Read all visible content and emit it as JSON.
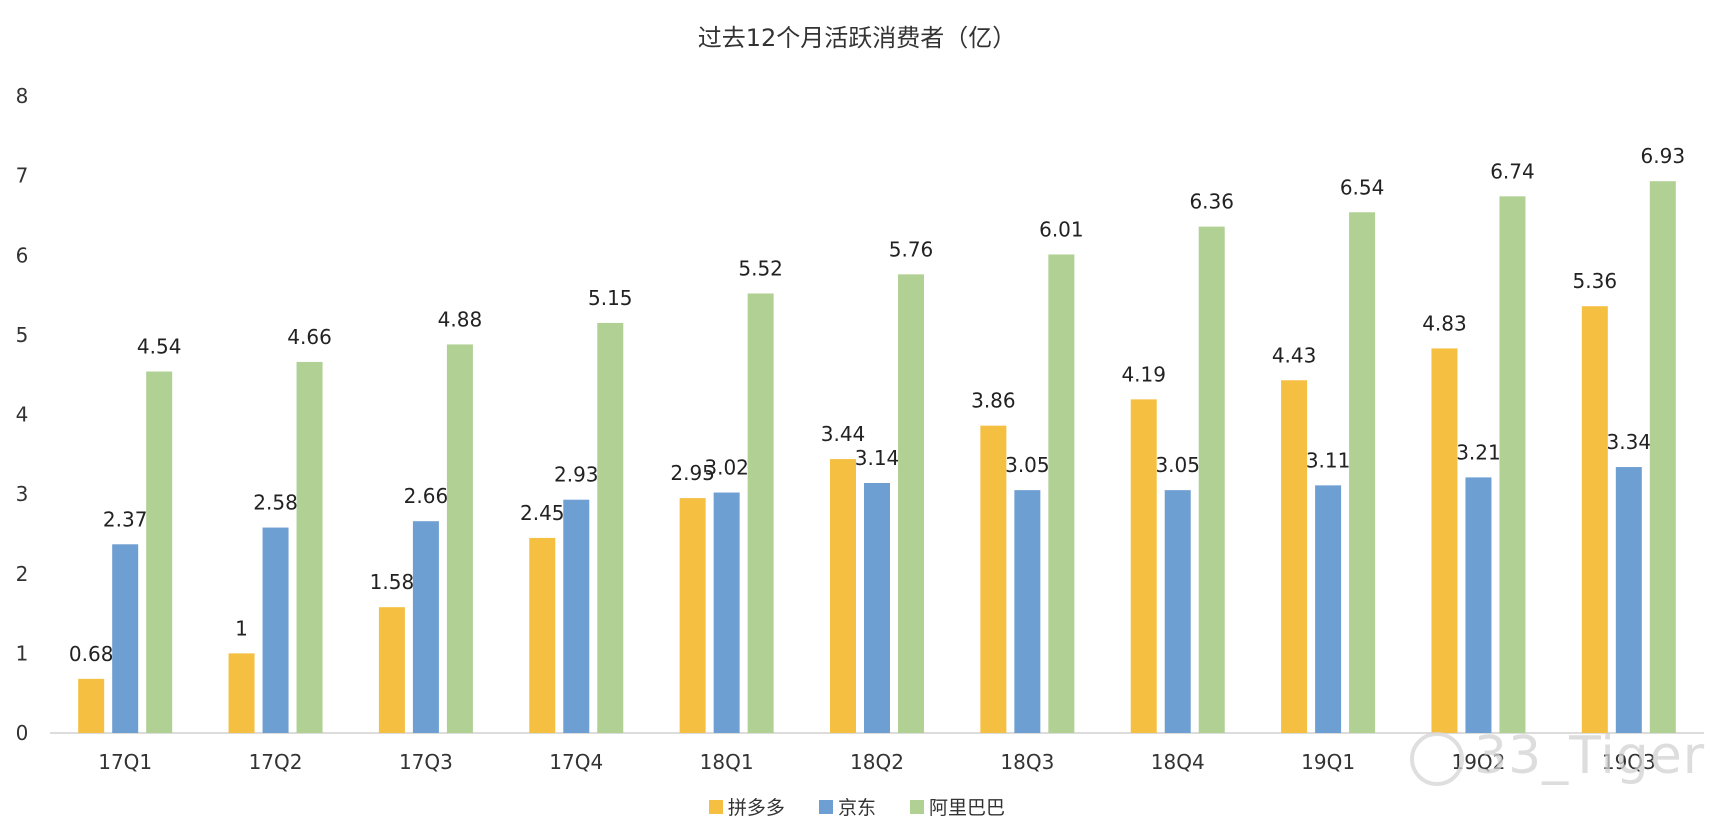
{
  "chart_data": {
    "type": "bar",
    "title": "过去12个月活跃消费者（亿）",
    "xlabel": "",
    "ylabel": "",
    "ylim": [
      0,
      8
    ],
    "yticks": [
      "0",
      "1",
      "2",
      "3",
      "4",
      "5",
      "6",
      "7",
      "8"
    ],
    "grid": false,
    "legend_position": "bottom",
    "categories": [
      "17Q1",
      "17Q2",
      "17Q3",
      "17Q4",
      "18Q1",
      "18Q2",
      "18Q3",
      "18Q4",
      "19Q1",
      "19Q2",
      "19Q3"
    ],
    "series": [
      {
        "name": "拼多多",
        "color": "#F5BF42",
        "values": [
          0.68,
          1,
          1.58,
          2.45,
          2.95,
          3.44,
          3.86,
          4.19,
          4.43,
          4.83,
          5.36
        ],
        "labels": [
          "0.68",
          "1",
          "1.58",
          "2.45",
          "2.95",
          "3.44",
          "3.86",
          "4.19",
          "4.43",
          "4.83",
          "5.36"
        ]
      },
      {
        "name": "京东",
        "color": "#6E9FD2",
        "values": [
          2.37,
          2.58,
          2.66,
          2.93,
          3.02,
          3.14,
          3.05,
          3.05,
          3.11,
          3.21,
          3.34
        ],
        "labels": [
          "2.37",
          "2.58",
          "2.66",
          "2.93",
          "3.02",
          "3.14",
          "3.05",
          "3.05",
          "3.11",
          "3.21",
          "3.34"
        ]
      },
      {
        "name": "阿里巴巴",
        "color": "#B0D094",
        "values": [
          4.54,
          4.66,
          4.88,
          5.15,
          5.52,
          5.76,
          6.01,
          6.36,
          6.54,
          6.74,
          6.93
        ],
        "labels": [
          "4.54",
          "4.66",
          "4.88",
          "5.15",
          "5.52",
          "5.76",
          "6.01",
          "6.36",
          "6.54",
          "6.74",
          "6.93"
        ]
      }
    ]
  },
  "watermark": "33_Tiger"
}
